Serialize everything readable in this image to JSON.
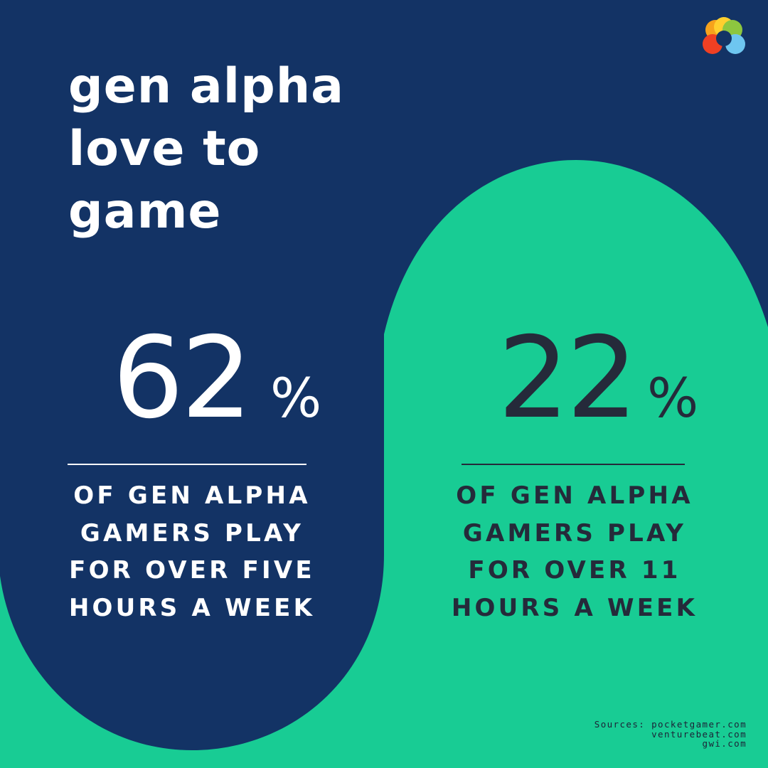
{
  "title_lines": [
    "gen alpha",
    "love to",
    "game"
  ],
  "stats": [
    {
      "value": "62",
      "unit": "%",
      "caption_lines": [
        "OF GEN ALPHA",
        "GAMERS PLAY",
        "FOR OVER FIVE",
        "HOURS A WEEK"
      ]
    },
    {
      "value": "22",
      "unit": "%",
      "caption_lines": [
        "OF GEN ALPHA",
        "GAMERS PLAY",
        "FOR OVER 11",
        "HOURS A WEEK"
      ]
    }
  ],
  "sources": [
    "Sources: pocketgamer.com",
    "venturebeat.com",
    "gwi.com"
  ],
  "logo_icon": "multicolor-flower-logo-icon",
  "colors": {
    "navy": "#133365",
    "green": "#18CC94",
    "white_text": "#FFFFFF",
    "dark_text": "#252A3A"
  }
}
